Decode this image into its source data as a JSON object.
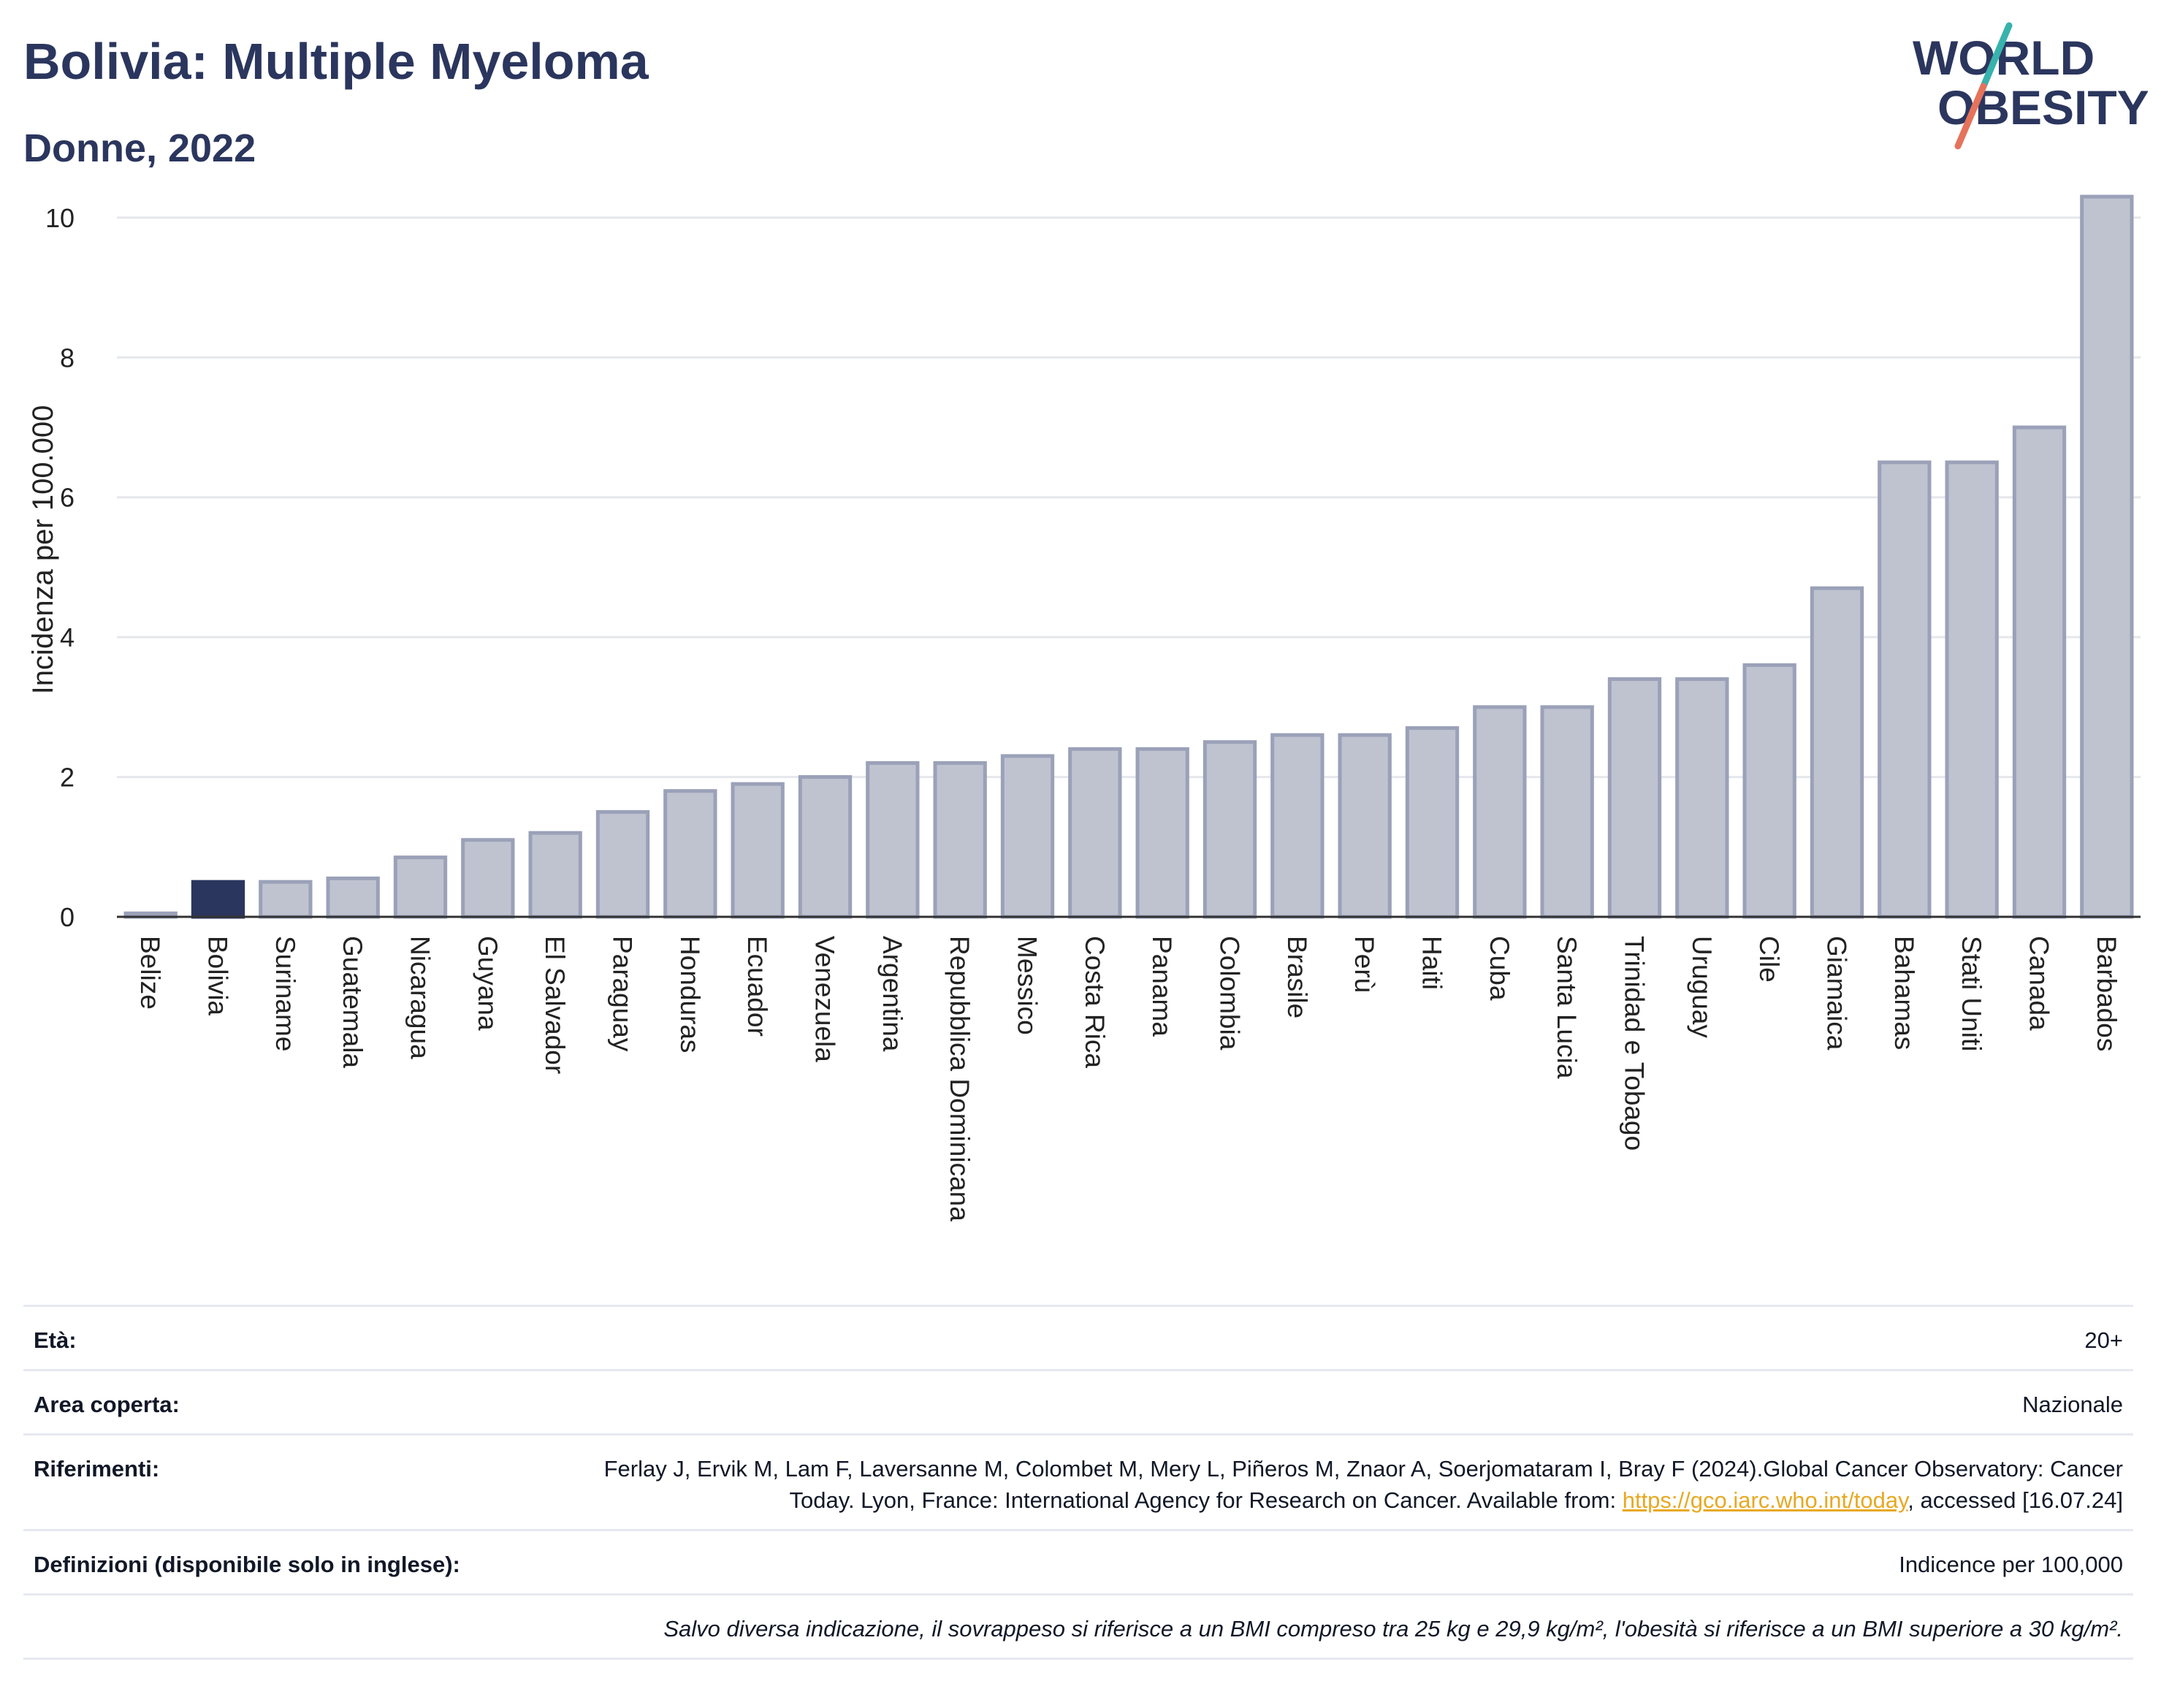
{
  "header": {
    "title": "Bolivia: Multiple Myeloma",
    "subtitle": "Donne, 2022"
  },
  "logo": {
    "line1": "WORLD",
    "line2": "OBESITY"
  },
  "colors": {
    "bar": "#bfc3d0",
    "bar_stroke": "#9aa1b8",
    "highlight": "#2b365e",
    "grid": "#e5e7eb",
    "text": "#2b365e",
    "link": "#e7a922"
  },
  "chart_data": {
    "type": "bar",
    "ylabel": "Incidenza per 100.000",
    "ylim": [
      0,
      10.5
    ],
    "yticks": [
      0,
      2,
      4,
      6,
      8,
      10
    ],
    "grid": true,
    "highlight": "Bolivia",
    "categories": [
      "Belize",
      "Bolivia",
      "Suriname",
      "Guatemala",
      "Nicaragua",
      "Guyana",
      "El Salvador",
      "Paraguay",
      "Honduras",
      "Ecuador",
      "Venezuela",
      "Argentina",
      "Repubblica Dominicana",
      "Messico",
      "Costa Rica",
      "Panama",
      "Colombia",
      "Brasile",
      "Perù",
      "Haiti",
      "Cuba",
      "Santa Lucia",
      "Trinidad e Tobago",
      "Uruguay",
      "Cile",
      "Giamaica",
      "Bahamas",
      "Stati Uniti",
      "Canada",
      "Barbados"
    ],
    "values": [
      0.05,
      0.5,
      0.5,
      0.55,
      0.85,
      1.1,
      1.2,
      1.5,
      1.8,
      1.9,
      2.0,
      2.2,
      2.2,
      2.3,
      2.4,
      2.4,
      2.5,
      2.6,
      2.6,
      2.7,
      3.0,
      3.0,
      3.4,
      3.4,
      3.6,
      4.7,
      6.5,
      6.5,
      7.0,
      10.3
    ]
  },
  "info": {
    "age_label": "Età:",
    "age_value": "20+",
    "area_label": "Area coperta:",
    "area_value": "Nazionale",
    "ref_label": "Riferimenti:",
    "ref_text_1": "Ferlay J, Ervik M, Lam F, Laversanne M, Colombet M, Mery L, Piñeros M, Znaor A, Soerjomataram I, Bray F (2024).Global Cancer Observatory: Cancer Today. Lyon, France: International Agency for Research on Cancer. Available from: ",
    "ref_link": "https://gco.iarc.who.int/today",
    "ref_text_2": ", accessed [16.07.24]",
    "def_label": "Definizioni (disponibile solo in inglese):",
    "def_value": "Indicence per 100,000",
    "note": "Salvo diversa indicazione, il sovrappeso si riferisce a un BMI compreso tra 25 kg e 29,9 kg/m², l'obesità si riferisce a un BMI superiore a 30 kg/m²."
  }
}
